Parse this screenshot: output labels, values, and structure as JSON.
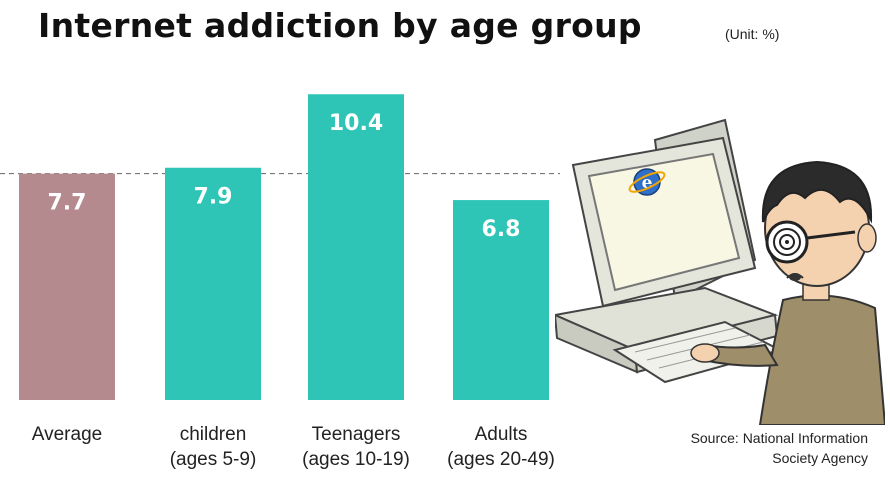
{
  "title": "Internet addiction by age group",
  "unit": "(Unit: %)",
  "source": {
    "line1": "Source: National Information",
    "line2": "Society Agency"
  },
  "colors": {
    "average_bar": "#b48a8f",
    "group_bar": "#2ec4b6",
    "reference_line": "#666666"
  },
  "chart_data": {
    "type": "bar",
    "title": "Internet addiction by age group",
    "unit": "(Unit: %)",
    "categories": [
      [
        "Average"
      ],
      [
        "children",
        "(ages 5-9)"
      ],
      [
        "Teenagers",
        "(ages 10-19)"
      ],
      [
        "Adults",
        "(ages 20-49)"
      ]
    ],
    "values": [
      7.7,
      7.9,
      10.4,
      6.8
    ],
    "value_labels": [
      "7.7",
      "7.9",
      "10.4",
      "6.8"
    ],
    "reference_line": 7.7,
    "reference_line_style": "dashed",
    "xlabel": "",
    "ylabel": "",
    "grid": false,
    "legend": "none"
  }
}
